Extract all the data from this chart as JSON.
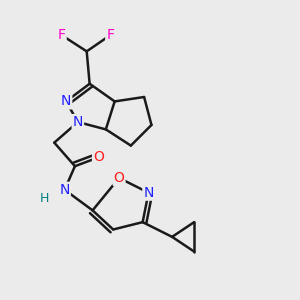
{
  "background_color": "#ebebeb",
  "atom_colors": {
    "C": "#1a1a1a",
    "N": "#2020ff",
    "O": "#ff2020",
    "F": "#ff00cc",
    "H": "#008080"
  },
  "bond_color": "#1a1a1a",
  "bond_width": 1.8,
  "figsize": [
    3.0,
    3.0
  ],
  "dpi": 100,
  "xlim": [
    0,
    10
  ],
  "ylim": [
    0,
    10
  ]
}
